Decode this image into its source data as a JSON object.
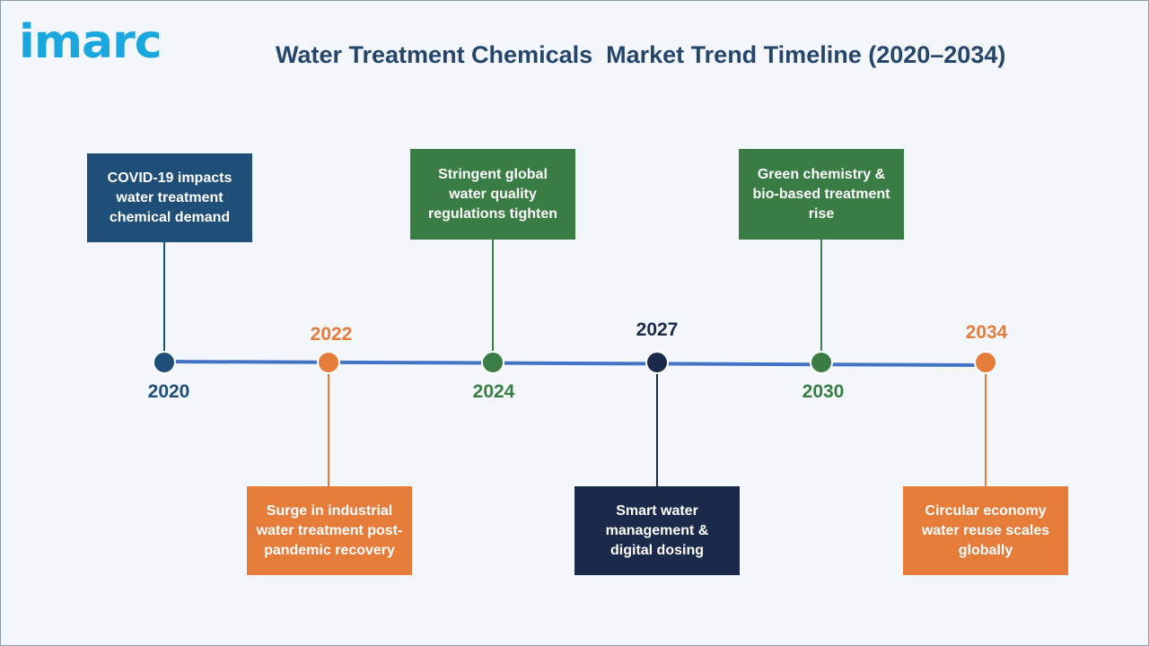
{
  "logo": {
    "text": "imarc",
    "color": "#1aa7df"
  },
  "title": "Water Treatment Chemicals  Market Trend Timeline (2020–2034)",
  "colors": {
    "title": "#25456b",
    "line": "#4472c4",
    "navy": "#1f4e79",
    "orange": "#e57c3a",
    "green": "#3a7d44",
    "dark": "#1b2a4a"
  },
  "milestones": [
    {
      "year": "2020",
      "text": "COVID-19 impacts water treatment chemical demand",
      "color": "#1f4e79",
      "year_color": "#1f4e79"
    },
    {
      "year": "2022",
      "text": "Surge in industrial water treatment post-pandemic recovery",
      "color": "#e57c3a",
      "year_color": "#e57c3a"
    },
    {
      "year": "2024",
      "text": "Stringent global water quality regulations tighten",
      "color": "#3a7d44",
      "year_color": "#3a7d44"
    },
    {
      "year": "2027",
      "text": "Smart water management & digital dosing",
      "color": "#1b2a4a",
      "year_color": "#1b2a4a"
    },
    {
      "year": "2030",
      "text": "Green chemistry & bio-based treatment rise",
      "color": "#3a7d44",
      "year_color": "#3a7d44"
    },
    {
      "year": "2034",
      "text": "Circular economy water reuse scales globally",
      "color": "#e57c3a",
      "year_color": "#e57c3a"
    }
  ]
}
